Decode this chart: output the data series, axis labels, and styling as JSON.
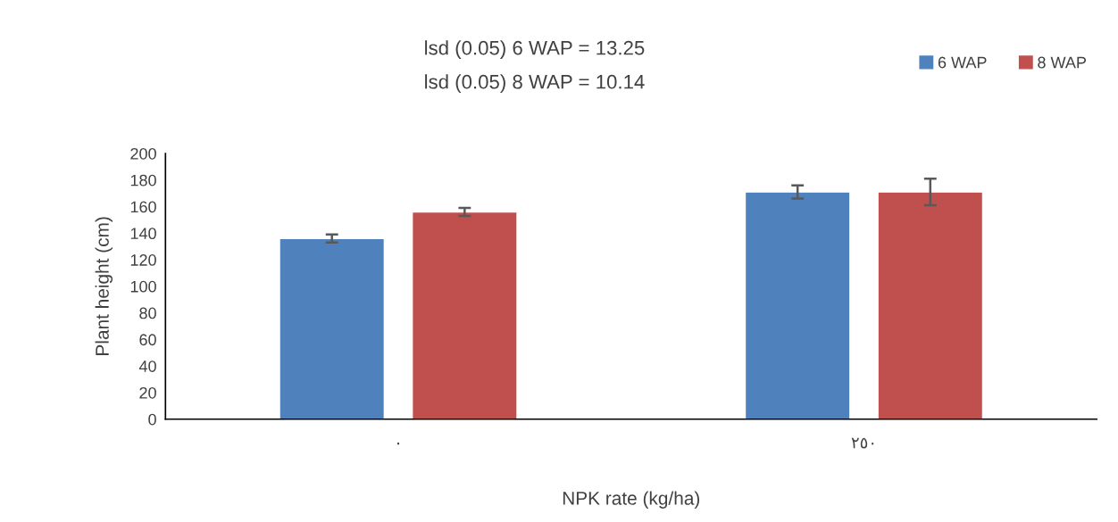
{
  "chart_data": {
    "type": "bar",
    "annotations": [
      "lsd (0.05) 6 WAP = 13.25",
      "lsd (0.05) 8 WAP = 10.14"
    ],
    "xlabel": "NPK rate (kg/ha)",
    "ylabel": "Plant height (cm)",
    "categories": [
      "٠",
      "٢٥٠"
    ],
    "series": [
      {
        "name": "6 WAP",
        "color": "#4f81bd",
        "values": [
          136,
          171
        ],
        "errors": [
          3,
          5
        ]
      },
      {
        "name": "8 WAP",
        "color": "#c0504d",
        "values": [
          156,
          171
        ],
        "errors": [
          3,
          10
        ]
      }
    ],
    "ylim": [
      0,
      200
    ],
    "yticks": [
      0,
      20,
      40,
      60,
      80,
      100,
      120,
      140,
      160,
      180,
      200
    ],
    "grid": false,
    "legend": "top right"
  }
}
